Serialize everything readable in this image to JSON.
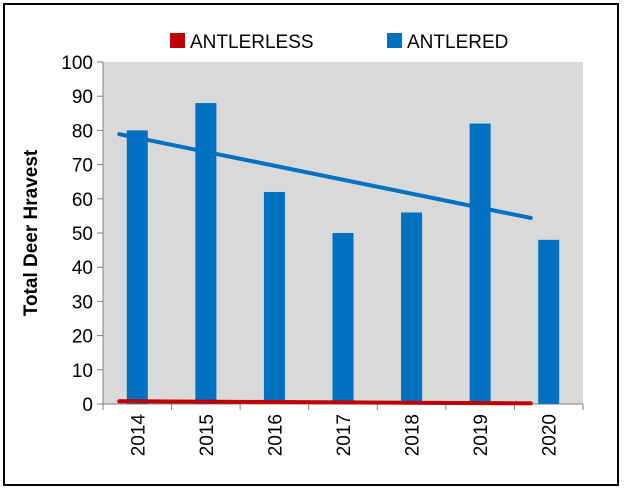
{
  "chart_data": {
    "type": "bar",
    "title": "",
    "xlabel": "",
    "ylabel": "Total Deer Hravest",
    "categories": [
      "2014",
      "2015",
      "2016",
      "2017",
      "2018",
      "2019",
      "2020"
    ],
    "series": [
      {
        "name": "ANTLERLESS",
        "color": "#c00000",
        "values": [
          0,
          0,
          0,
          0,
          0,
          0,
          0
        ]
      },
      {
        "name": "ANTLERED",
        "color": "#0070c0",
        "values": [
          80,
          88,
          62,
          50,
          56,
          82,
          48
        ]
      }
    ],
    "trendlines": [
      {
        "series": "ANTLERLESS",
        "color": "#c00000",
        "start": 0.8,
        "end": 0.2
      },
      {
        "series": "ANTLERED",
        "color": "#0070c0",
        "start": 78.9,
        "end": 54.4
      }
    ],
    "ylim": [
      0,
      100
    ],
    "yticks": [
      0,
      10,
      20,
      30,
      40,
      50,
      60,
      70,
      80,
      90,
      100
    ],
    "grid": false,
    "plot_background": "#d9d9d9",
    "legend_position": "top"
  }
}
